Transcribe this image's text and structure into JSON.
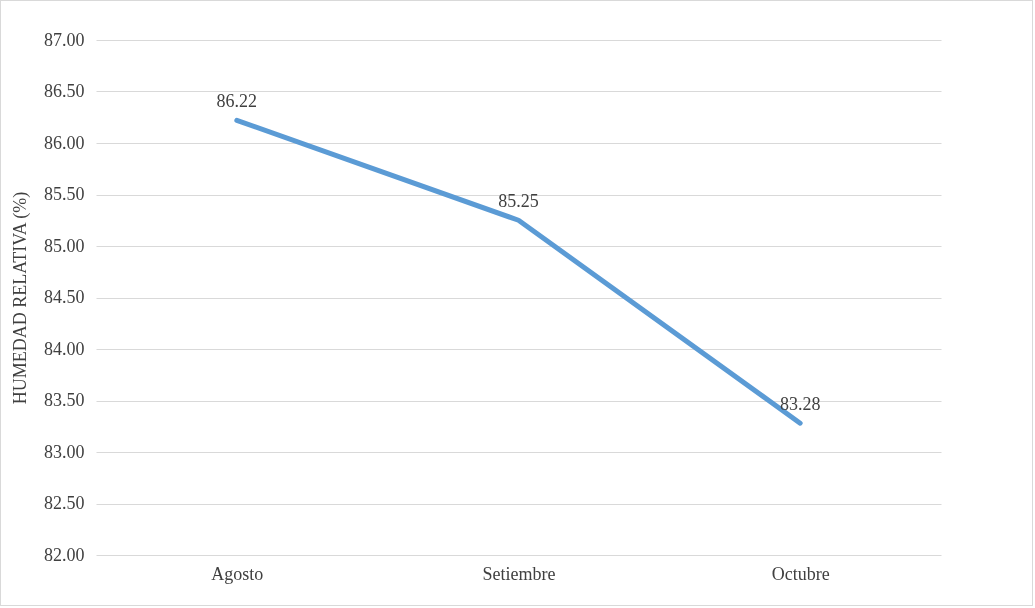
{
  "chart_data": {
    "type": "line",
    "ylabel": "HUMEDAD RELATIVA (%)",
    "categories": [
      "Agosto",
      "Setiembre",
      "Octubre"
    ],
    "series": [
      {
        "color": "#5b9bd5",
        "values": [
          86.22,
          85.25,
          83.28
        ]
      }
    ],
    "ylim": [
      82,
      87
    ],
    "yticks": [
      {
        "value": 82,
        "label": "82.00"
      },
      {
        "value": 82.5,
        "label": "82.50"
      },
      {
        "value": 83,
        "label": "83.00"
      },
      {
        "value": 83.5,
        "label": "83.50"
      },
      {
        "value": 84,
        "label": "84.00"
      },
      {
        "value": 84.5,
        "label": "84.50"
      },
      {
        "value": 85,
        "label": "85.00"
      },
      {
        "value": 85.5,
        "label": "85.50"
      },
      {
        "value": 86,
        "label": "86.00"
      },
      {
        "value": 86.5,
        "label": "86.50"
      },
      {
        "value": 87,
        "label": "87.00"
      }
    ],
    "grid": "y",
    "data_labels": true,
    "marker": "none",
    "line_style": "solid"
  }
}
